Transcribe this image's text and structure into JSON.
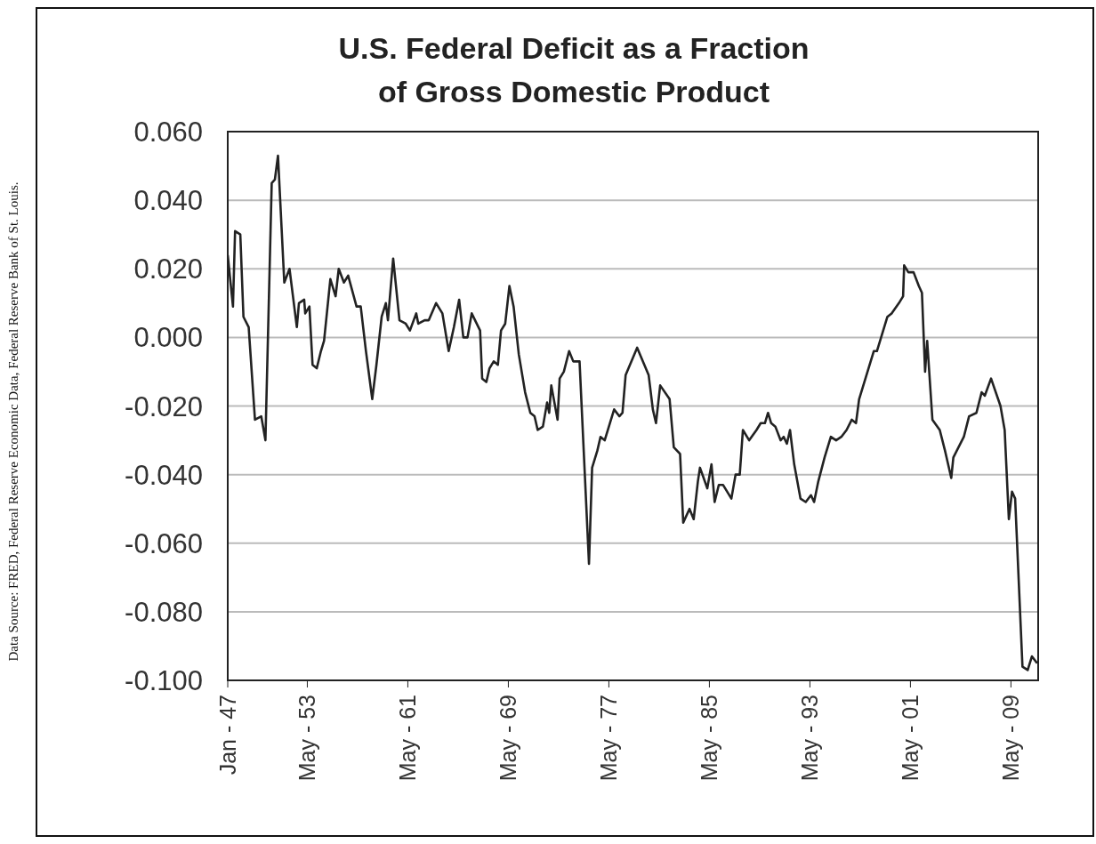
{
  "chart_data": {
    "type": "line",
    "title": "U.S. Federal Deficit as a Fraction\nof Gross Domestic Product",
    "annotations": [
      "Data Source: FRED, Federal Reserve Economic Data, Federal Reserve Bank of St. Louis."
    ],
    "xlim": [
      "1947-01",
      "2011-07"
    ],
    "xticks": [
      {
        "value": "1947-01",
        "label": "Jan - 47"
      },
      {
        "value": "1953-05",
        "label": "May - 53"
      },
      {
        "value": "1961-05",
        "label": "May - 61"
      },
      {
        "value": "1969-05",
        "label": "May - 69"
      },
      {
        "value": "1977-05",
        "label": "May - 77"
      },
      {
        "value": "1985-05",
        "label": "May - 85"
      },
      {
        "value": "1993-05",
        "label": "May - 93"
      },
      {
        "value": "2001-05",
        "label": "May - 01"
      },
      {
        "value": "2009-05",
        "label": "May - 09"
      }
    ],
    "ylim": [
      -0.1,
      0.06
    ],
    "yticks": [
      {
        "value": -0.1,
        "label": "-0.100"
      },
      {
        "value": -0.08,
        "label": "-0.080"
      },
      {
        "value": -0.06,
        "label": "-0.060"
      },
      {
        "value": -0.04,
        "label": "-0.040"
      },
      {
        "value": -0.02,
        "label": "-0.020"
      },
      {
        "value": 0,
        "label": "0.000"
      },
      {
        "value": 0.02,
        "label": "0.020"
      },
      {
        "value": 0.04,
        "label": "0.040"
      },
      {
        "value": 0.06,
        "label": "0.060"
      }
    ],
    "grid": "y",
    "marker": "none",
    "line_style": "solid",
    "series": [
      {
        "color": "#222222",
        "x": [
          "1947-01",
          "1947-06",
          "1947-08",
          "1948-01",
          "1948-04",
          "1948-09",
          "1949-03",
          "1949-09",
          "1950-01",
          "1950-07",
          "1950-10",
          "1951-01",
          "1951-07",
          "1951-12",
          "1952-07",
          "1952-09",
          "1953-02",
          "1953-03",
          "1953-07",
          "1953-10",
          "1954-02",
          "1954-06",
          "1954-09",
          "1955-03",
          "1955-08",
          "1955-11",
          "1956-04",
          "1956-08",
          "1957-04",
          "1957-08",
          "1958-01",
          "1958-07",
          "1958-11",
          "1959-04",
          "1959-08",
          "1959-10",
          "1960-03",
          "1960-09",
          "1961-03",
          "1961-07",
          "1962-01",
          "1962-03",
          "1962-09",
          "1963-01",
          "1963-08",
          "1964-02",
          "1964-08",
          "1965-01",
          "1965-06",
          "1965-10",
          "1966-02",
          "1966-06",
          "1967-02",
          "1967-04",
          "1967-08",
          "1967-11",
          "1968-03",
          "1968-07",
          "1968-10",
          "1969-02",
          "1969-06",
          "1969-10",
          "1970-03",
          "1970-09",
          "1971-02",
          "1971-06",
          "1971-09",
          "1972-02",
          "1972-06",
          "1972-08",
          "1972-10",
          "1973-04",
          "1973-06",
          "1973-10",
          "1974-03",
          "1974-07",
          "1975-01",
          "1975-10",
          "1976-01",
          "1976-06",
          "1976-09",
          "1977-01",
          "1977-10",
          "1978-03",
          "1978-06",
          "1978-09",
          "1979-08",
          "1980-07",
          "1980-11",
          "1981-02",
          "1981-06",
          "1982-03",
          "1982-07",
          "1983-01",
          "1983-04",
          "1983-10",
          "1984-02",
          "1984-06",
          "1984-08",
          "1985-03",
          "1985-07",
          "1985-10",
          "1986-02",
          "1986-06",
          "1987-02",
          "1987-06",
          "1987-10",
          "1988-01",
          "1988-07",
          "1989-02",
          "1989-06",
          "1989-10",
          "1990-01",
          "1990-04",
          "1990-08",
          "1991-01",
          "1991-04",
          "1991-07",
          "1991-10",
          "1992-02",
          "1992-08",
          "1993-01",
          "1993-06",
          "1993-09",
          "1994-01",
          "1994-07",
          "1995-01",
          "1995-06",
          "1995-11",
          "1996-04",
          "1996-09",
          "1997-01",
          "1997-04",
          "1998-06",
          "1998-09",
          "1999-07",
          "1999-11",
          "2000-06",
          "2000-10",
          "2000-11",
          "2001-03",
          "2001-08",
          "2002-01",
          "2002-04",
          "2002-07",
          "2002-09",
          "2003-02",
          "2003-09",
          "2004-02",
          "2004-08",
          "2004-10",
          "2005-08",
          "2006-01",
          "2006-08",
          "2007-01",
          "2007-04",
          "2007-10",
          "2008-07",
          "2008-11",
          "2009-03",
          "2009-06",
          "2009-09",
          "2010-04",
          "2010-09",
          "2011-01",
          "2011-06"
        ],
        "values": [
          0.024,
          0.009,
          0.031,
          0.03,
          0.006,
          0.003,
          -0.024,
          -0.023,
          -0.03,
          0.045,
          0.046,
          0.053,
          0.016,
          0.02,
          0.003,
          0.01,
          0.011,
          0.007,
          0.009,
          -0.008,
          -0.009,
          -0.004,
          -0.001,
          0.017,
          0.012,
          0.02,
          0.016,
          0.018,
          0.009,
          0.009,
          -0.004,
          -0.018,
          -0.008,
          0.006,
          0.01,
          0.005,
          0.023,
          0.005,
          0.004,
          0.002,
          0.007,
          0.004,
          0.005,
          0.005,
          0.01,
          0.007,
          -0.004,
          0.003,
          0.011,
          0.0,
          0.0,
          0.007,
          0.002,
          -0.012,
          -0.013,
          -0.009,
          -0.007,
          -0.008,
          0.002,
          0.004,
          0.015,
          0.009,
          -0.005,
          -0.016,
          -0.022,
          -0.023,
          -0.027,
          -0.026,
          -0.019,
          -0.022,
          -0.014,
          -0.024,
          -0.012,
          -0.01,
          -0.004,
          -0.007,
          -0.007,
          -0.066,
          -0.038,
          -0.033,
          -0.029,
          -0.03,
          -0.021,
          -0.023,
          -0.022,
          -0.011,
          -0.003,
          -0.011,
          -0.021,
          -0.025,
          -0.014,
          -0.018,
          -0.032,
          -0.034,
          -0.054,
          -0.05,
          -0.053,
          -0.042,
          -0.038,
          -0.044,
          -0.037,
          -0.048,
          -0.043,
          -0.043,
          -0.047,
          -0.04,
          -0.04,
          -0.027,
          -0.03,
          -0.027,
          -0.025,
          -0.025,
          -0.022,
          -0.025,
          -0.026,
          -0.03,
          -0.029,
          -0.031,
          -0.027,
          -0.037,
          -0.047,
          -0.048,
          -0.046,
          -0.048,
          -0.042,
          -0.035,
          -0.029,
          -0.03,
          -0.029,
          -0.027,
          -0.024,
          -0.025,
          -0.018,
          -0.004,
          -0.004,
          0.006,
          0.007,
          0.01,
          0.012,
          0.021,
          0.019,
          0.019,
          0.015,
          0.013,
          -0.01,
          -0.001,
          -0.024,
          -0.027,
          -0.033,
          -0.041,
          -0.035,
          -0.029,
          -0.023,
          -0.022,
          -0.016,
          -0.017,
          -0.012,
          -0.02,
          -0.027,
          -0.053,
          -0.045,
          -0.047,
          -0.096,
          -0.097,
          -0.093,
          -0.095
        ]
      }
    ]
  }
}
